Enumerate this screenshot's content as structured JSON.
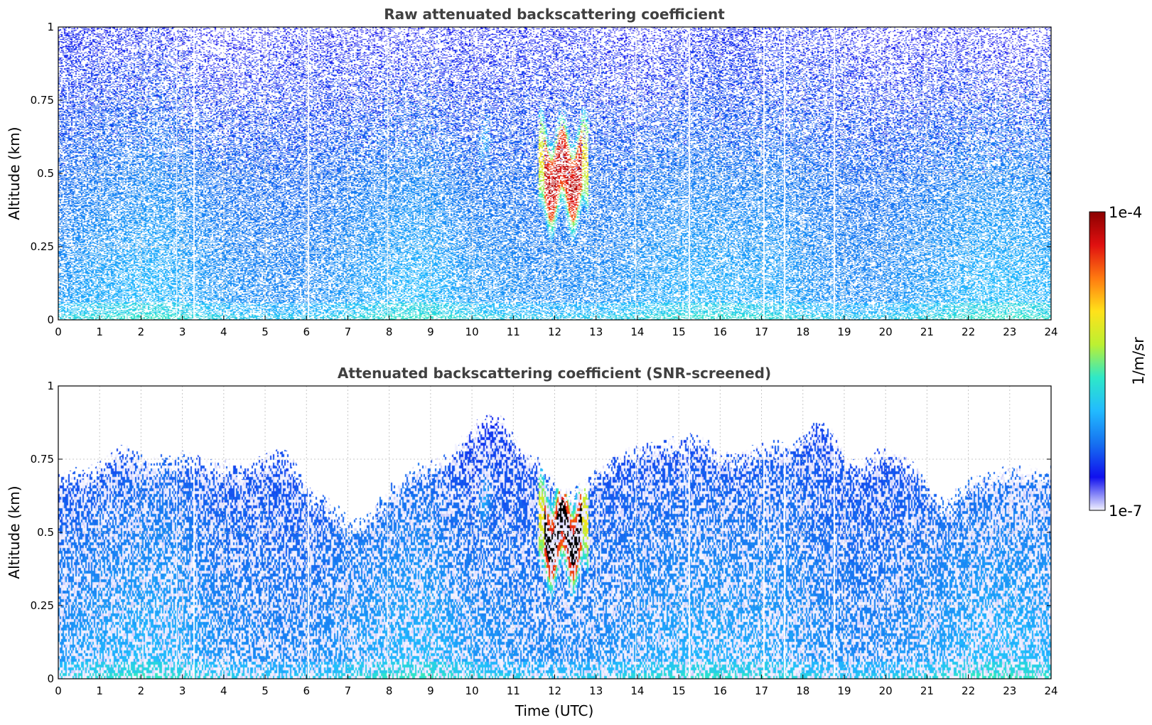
{
  "chart_data": [
    {
      "type": "heatmap",
      "title": "Raw attenuated backscattering coefficient",
      "xlabel": "",
      "ylabel": "Altitude (km)",
      "xlim": [
        0,
        24
      ],
      "ylim": [
        0,
        1
      ],
      "x_ticks": [
        "0",
        "1",
        "2",
        "3",
        "4",
        "5",
        "6",
        "7",
        "8",
        "9",
        "10",
        "11",
        "12",
        "13",
        "14",
        "15",
        "16",
        "17",
        "18",
        "19",
        "20",
        "21",
        "22",
        "23",
        "24"
      ],
      "y_ticks": [
        "0",
        "0.25",
        "0.5",
        "0.75",
        "1"
      ],
      "grid": true,
      "screened": false
    },
    {
      "type": "heatmap",
      "title": "Attenuated backscattering coefficient (SNR-screened)",
      "xlabel": "Time (UTC)",
      "ylabel": "Altitude (km)",
      "xlim": [
        0,
        24
      ],
      "ylim": [
        0,
        1
      ],
      "x_ticks": [
        "0",
        "1",
        "2",
        "3",
        "4",
        "5",
        "6",
        "7",
        "8",
        "9",
        "10",
        "11",
        "12",
        "13",
        "14",
        "15",
        "16",
        "17",
        "18",
        "19",
        "20",
        "21",
        "22",
        "23",
        "24"
      ],
      "y_ticks": [
        "0",
        "0.25",
        "0.5",
        "0.75",
        "1"
      ],
      "grid": true,
      "screened": true
    }
  ],
  "colorbar": {
    "label": "1/m/sr",
    "max_label": "1e-4",
    "min_label": "1e-7",
    "scale": "log",
    "range": [
      1e-07,
      0.0001
    ],
    "colormap": [
      "#f2f2ff",
      "#1010ee",
      "#1670f0",
      "#22bbff",
      "#2ee8c8",
      "#bcf032",
      "#ffe21a",
      "#ff7a10",
      "#e01010",
      "#8b0000"
    ]
  },
  "data_gaps_utc": [
    2.85,
    3.27,
    6.04,
    7.95,
    13.95,
    15.25,
    17.05,
    17.55,
    18.75
  ],
  "cloud_feature": {
    "time_start_utc": 11.6,
    "time_end_utc": 12.8,
    "altitude_low_km": 0.45,
    "altitude_high_km": 0.62
  }
}
